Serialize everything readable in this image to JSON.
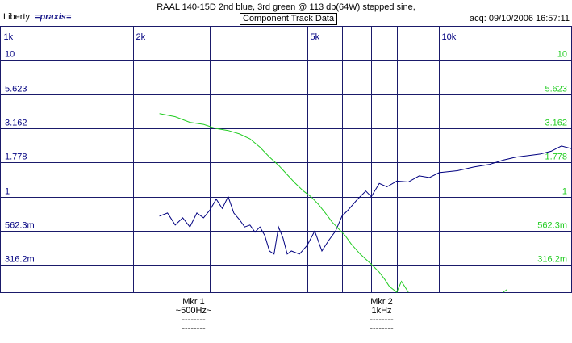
{
  "window": {
    "app_name": "Liberty",
    "app_brand": "=praxis=",
    "title": "RAAL 140-15D 2nd blue, 3rd green @ 113 db(64W) stepped sine,",
    "subtitle": "Component Track Data",
    "acq": "acq: 09/10/2006 16:57:11"
  },
  "markers": [
    {
      "label": "Mkr 1",
      "value": "~500Hz~",
      "line1": "--------",
      "line2": "--------"
    },
    {
      "label": "Mkr 2",
      "value": "1kHz",
      "line1": "--------",
      "line2": "--------"
    }
  ],
  "colors": {
    "grid": "#1a1a6a",
    "blue_series": "#000080",
    "green_series": "#22cc22",
    "left_ticks": "#000080",
    "right_ticks": "#22cc22"
  },
  "chart_data": {
    "type": "line",
    "x_scale": "log",
    "y_scale": "log",
    "xlim": [
      1000,
      20000
    ],
    "ylim": [
      0.2,
      17.8
    ],
    "grid": true,
    "x_ticks": [
      {
        "value": 1000,
        "label": "1k"
      },
      {
        "value": 2000,
        "label": "2k"
      },
      {
        "value": 3000,
        "label": ""
      },
      {
        "value": 4000,
        "label": ""
      },
      {
        "value": 5000,
        "label": "5k"
      },
      {
        "value": 6000,
        "label": ""
      },
      {
        "value": 7000,
        "label": ""
      },
      {
        "value": 8000,
        "label": ""
      },
      {
        "value": 9000,
        "label": ""
      },
      {
        "value": 10000,
        "label": "10k"
      }
    ],
    "y_ticks": [
      {
        "value": 10,
        "label": "10"
      },
      {
        "value": 5.623,
        "label": "5.623"
      },
      {
        "value": 3.162,
        "label": "3.162"
      },
      {
        "value": 1.778,
        "label": "1.778"
      },
      {
        "value": 1,
        "label": "1"
      },
      {
        "value": 0.5623,
        "label": "562.3m"
      },
      {
        "value": 0.3162,
        "label": "316.2m"
      }
    ],
    "series": [
      {
        "color": "blue",
        "points": [
          [
            2300,
            0.72
          ],
          [
            2400,
            0.76
          ],
          [
            2500,
            0.62
          ],
          [
            2600,
            0.7
          ],
          [
            2700,
            0.6
          ],
          [
            2800,
            0.76
          ],
          [
            2900,
            0.7
          ],
          [
            3000,
            0.8
          ],
          [
            3100,
            0.96
          ],
          [
            3200,
            0.82
          ],
          [
            3300,
            1.0
          ],
          [
            3400,
            0.76
          ],
          [
            3500,
            0.68
          ],
          [
            3600,
            0.6
          ],
          [
            3700,
            0.62
          ],
          [
            3800,
            0.55
          ],
          [
            3900,
            0.6
          ],
          [
            4000,
            0.52
          ],
          [
            4100,
            0.4
          ],
          [
            4200,
            0.38
          ],
          [
            4300,
            0.6
          ],
          [
            4400,
            0.5
          ],
          [
            4500,
            0.38
          ],
          [
            4600,
            0.4
          ],
          [
            4800,
            0.38
          ],
          [
            5000,
            0.44
          ],
          [
            5200,
            0.56
          ],
          [
            5400,
            0.4
          ],
          [
            5600,
            0.48
          ],
          [
            5800,
            0.56
          ],
          [
            6000,
            0.72
          ],
          [
            6200,
            0.8
          ],
          [
            6500,
            0.95
          ],
          [
            6800,
            1.1
          ],
          [
            7000,
            1.0
          ],
          [
            7300,
            1.25
          ],
          [
            7600,
            1.18
          ],
          [
            8000,
            1.3
          ],
          [
            8500,
            1.28
          ],
          [
            9000,
            1.42
          ],
          [
            9500,
            1.38
          ],
          [
            10000,
            1.5
          ],
          [
            11000,
            1.55
          ],
          [
            12000,
            1.65
          ],
          [
            13000,
            1.72
          ],
          [
            14000,
            1.85
          ],
          [
            15000,
            1.95
          ],
          [
            16000,
            2.0
          ],
          [
            17000,
            2.05
          ],
          [
            18000,
            2.15
          ],
          [
            19000,
            2.35
          ],
          [
            20000,
            2.25
          ]
        ]
      },
      {
        "color": "green",
        "points": [
          [
            2300,
            4.05
          ],
          [
            2500,
            3.85
          ],
          [
            2700,
            3.5
          ],
          [
            2900,
            3.38
          ],
          [
            3100,
            3.15
          ],
          [
            3300,
            3.05
          ],
          [
            3500,
            2.88
          ],
          [
            3700,
            2.65
          ],
          [
            3900,
            2.3
          ],
          [
            4100,
            1.95
          ],
          [
            4300,
            1.7
          ],
          [
            4500,
            1.45
          ],
          [
            4700,
            1.25
          ],
          [
            4900,
            1.1
          ],
          [
            5100,
            1.0
          ],
          [
            5300,
            0.88
          ],
          [
            5500,
            0.76
          ],
          [
            5700,
            0.65
          ],
          [
            5900,
            0.58
          ],
          [
            6100,
            0.52
          ],
          [
            6300,
            0.45
          ],
          [
            6600,
            0.38
          ],
          [
            7000,
            0.32
          ],
          [
            7300,
            0.28
          ],
          [
            7500,
            0.25
          ],
          [
            7700,
            0.22
          ],
          [
            8000,
            0.2
          ],
          [
            8200,
            0.24
          ],
          [
            8500,
            0.2
          ]
        ]
      },
      {
        "color": "green",
        "points": [
          [
            14000,
            0.2
          ],
          [
            14300,
            0.21
          ]
        ]
      }
    ]
  }
}
